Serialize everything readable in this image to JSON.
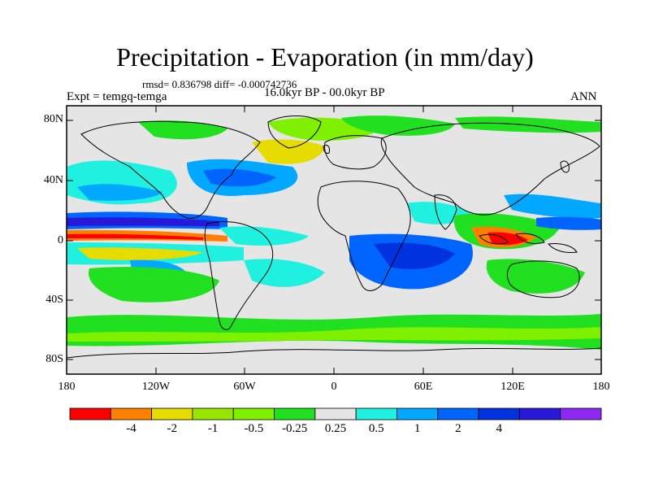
{
  "title": "Precipitation - Evaporation (in mm/day)",
  "stats_line": "rmsd= 0.836798 diff= -0.000742736",
  "experiment_label": "Expt = temgq-temga",
  "period_label": "16.0kyr BP - 00.0kyr BP",
  "season_label": "ANN",
  "map": {
    "background_color": "#e5e5e5",
    "latitude_labels": [
      "80N",
      "40N",
      "0",
      "40S",
      "80S"
    ],
    "longitude_labels": [
      "180",
      "120W",
      "60W",
      "0",
      "60E",
      "120E",
      "180"
    ]
  },
  "colorbar": {
    "colors": [
      "#ff0000",
      "#ff8000",
      "#e6dc00",
      "#96e600",
      "#7ff000",
      "#20e020",
      "#e5e5e5",
      "#20f0e0",
      "#00a8ff",
      "#0064ff",
      "#0032e0",
      "#2818d8",
      "#8c28f0"
    ],
    "labels": [
      "-4",
      "-2",
      "-1",
      "-0.5",
      "-0.25",
      "0.25",
      "0.5",
      "1",
      "2",
      "4"
    ]
  }
}
